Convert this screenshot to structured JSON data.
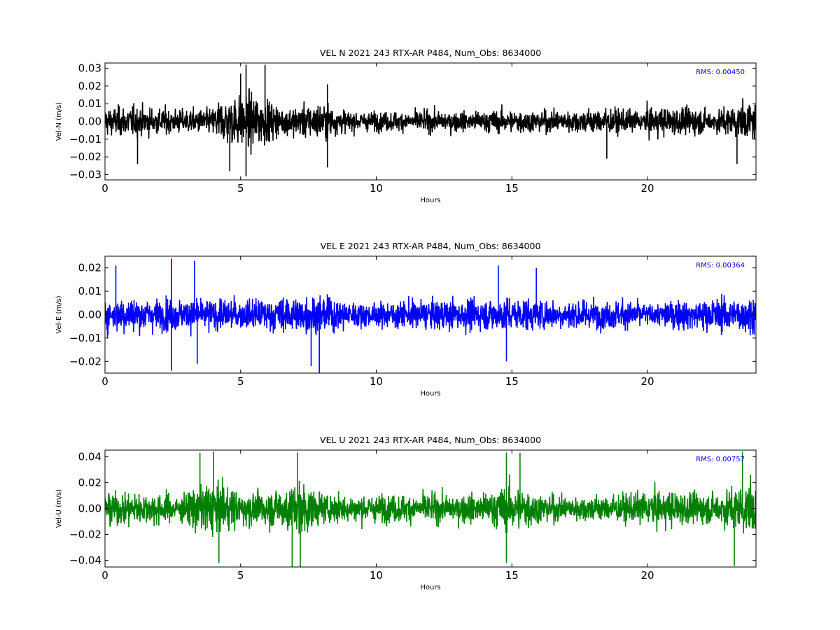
{
  "chart_data": [
    {
      "type": "line",
      "title": "VEL N 2021 243 RTX-AR  P484, Num_Obs: 8634000",
      "xlabel": "Hours",
      "ylabel": "Vel-N (m/s)",
      "xlim": [
        0,
        24
      ],
      "ylim": [
        -0.033,
        0.033
      ],
      "xticks": [
        0,
        5,
        10,
        15,
        20
      ],
      "xtick_labels": [
        "0",
        "5",
        "10",
        "15",
        "20"
      ],
      "yticks": [
        -0.03,
        -0.02,
        -0.01,
        0.0,
        0.01,
        0.02,
        0.03
      ],
      "ytick_labels": [
        "−0.03",
        "−0.02",
        "−0.01",
        "0.00",
        "0.01",
        "0.02",
        "0.03"
      ],
      "annotation": "RMS:  0.00450",
      "rms": 0.0045,
      "color": "#000000",
      "grid": false,
      "envelope": [
        [
          0,
          0.013
        ],
        [
          1,
          0.014
        ],
        [
          2,
          0.012
        ],
        [
          3,
          0.011
        ],
        [
          4,
          0.012
        ],
        [
          4.2,
          0.02
        ],
        [
          5,
          0.024
        ],
        [
          5.5,
          0.025
        ],
        [
          6,
          0.02
        ],
        [
          6.5,
          0.012
        ],
        [
          7,
          0.014
        ],
        [
          8,
          0.017
        ],
        [
          8.6,
          0.012
        ],
        [
          9,
          0.009
        ],
        [
          10,
          0.009
        ],
        [
          11,
          0.009
        ],
        [
          12,
          0.01
        ],
        [
          13,
          0.009
        ],
        [
          14,
          0.01
        ],
        [
          15,
          0.011
        ],
        [
          16,
          0.01
        ],
        [
          17,
          0.01
        ],
        [
          18,
          0.012
        ],
        [
          19,
          0.011
        ],
        [
          19.9,
          0.009
        ],
        [
          20,
          0.013
        ],
        [
          21,
          0.013
        ],
        [
          22,
          0.012
        ],
        [
          22.5,
          0.01
        ],
        [
          23,
          0.014
        ],
        [
          24,
          0.017
        ]
      ],
      "spikes": [
        [
          5.2,
          0.032
        ],
        [
          5.9,
          0.032
        ],
        [
          5.2,
          -0.031
        ],
        [
          4.6,
          -0.028
        ],
        [
          8.2,
          -0.026
        ],
        [
          1.2,
          -0.024
        ],
        [
          23.3,
          -0.024
        ],
        [
          8.2,
          0.021
        ],
        [
          18.5,
          -0.021
        ],
        [
          5,
          0.027
        ]
      ]
    },
    {
      "type": "line",
      "title": "VEL E 2021 243 RTX-AR  P484, Num_Obs: 8634000",
      "xlabel": "Hours",
      "ylabel": "Vel-E (m/s)",
      "xlim": [
        0,
        24
      ],
      "ylim": [
        -0.025,
        0.025
      ],
      "xticks": [
        0,
        5,
        10,
        15,
        20
      ],
      "xtick_labels": [
        "0",
        "5",
        "10",
        "15",
        "20"
      ],
      "yticks": [
        -0.02,
        -0.01,
        0.0,
        0.01,
        0.02
      ],
      "ytick_labels": [
        "−0.02",
        "−0.01",
        "0.00",
        "0.01",
        "0.02"
      ],
      "annotation": "RMS:  0.00364",
      "rms": 0.00364,
      "color": "#0000ff",
      "grid": false,
      "envelope": [
        [
          0,
          0.012
        ],
        [
          1,
          0.012
        ],
        [
          2,
          0.011
        ],
        [
          3,
          0.011
        ],
        [
          4,
          0.011
        ],
        [
          5,
          0.01
        ],
        [
          6,
          0.011
        ],
        [
          7,
          0.013
        ],
        [
          8,
          0.013
        ],
        [
          8.7,
          0.011
        ],
        [
          9.5,
          0.008
        ],
        [
          10,
          0.008
        ],
        [
          11,
          0.01
        ],
        [
          12,
          0.01
        ],
        [
          13,
          0.011
        ],
        [
          14,
          0.011
        ],
        [
          15,
          0.012
        ],
        [
          16,
          0.011
        ],
        [
          17,
          0.01
        ],
        [
          18,
          0.01
        ],
        [
          19,
          0.01
        ],
        [
          19.9,
          0.009
        ],
        [
          20,
          0.007
        ],
        [
          21,
          0.01
        ],
        [
          22,
          0.011
        ],
        [
          23,
          0.012
        ],
        [
          24,
          0.013
        ]
      ],
      "spikes": [
        [
          2.45,
          0.024
        ],
        [
          3.3,
          0.023
        ],
        [
          2.45,
          -0.024
        ],
        [
          7.9,
          -0.026
        ],
        [
          7.6,
          -0.022
        ],
        [
          14.5,
          0.021
        ],
        [
          15.9,
          0.02
        ],
        [
          0.4,
          0.021
        ],
        [
          3.4,
          -0.021
        ],
        [
          14.8,
          -0.02
        ]
      ]
    },
    {
      "type": "line",
      "title": "VEL U 2021 243 RTX-AR  P484, Num_Obs: 8634000",
      "xlabel": "Hours",
      "ylabel": "Vel-U (m/s)",
      "xlim": [
        0,
        24
      ],
      "ylim": [
        -0.045,
        0.045
      ],
      "xticks": [
        0,
        5,
        10,
        15,
        20
      ],
      "xtick_labels": [
        "0",
        "5",
        "10",
        "15",
        "20"
      ],
      "yticks": [
        -0.04,
        -0.02,
        0.0,
        0.02,
        0.04
      ],
      "ytick_labels": [
        "−0.04",
        "−0.02",
        "0.00",
        "0.02",
        "0.04"
      ],
      "annotation": "RMS:  0.00757",
      "rms": 0.00757,
      "color": "#008000",
      "grid": false,
      "envelope": [
        [
          0,
          0.02
        ],
        [
          1,
          0.02
        ],
        [
          2,
          0.02
        ],
        [
          2.8,
          0.015
        ],
        [
          3.5,
          0.033
        ],
        [
          4,
          0.034
        ],
        [
          4.5,
          0.028
        ],
        [
          5,
          0.02
        ],
        [
          6,
          0.022
        ],
        [
          6.5,
          0.026
        ],
        [
          7,
          0.034
        ],
        [
          7.5,
          0.03
        ],
        [
          8,
          0.018
        ],
        [
          9,
          0.017
        ],
        [
          10,
          0.017
        ],
        [
          11,
          0.017
        ],
        [
          12,
          0.018
        ],
        [
          13,
          0.017
        ],
        [
          14,
          0.02
        ],
        [
          15,
          0.03
        ],
        [
          15.5,
          0.026
        ],
        [
          16,
          0.019
        ],
        [
          17,
          0.015
        ],
        [
          18,
          0.017
        ],
        [
          19,
          0.017
        ],
        [
          20,
          0.021
        ],
        [
          21,
          0.023
        ],
        [
          22,
          0.018
        ],
        [
          23,
          0.024
        ],
        [
          23.5,
          0.032
        ],
        [
          24,
          0.03
        ]
      ],
      "spikes": [
        [
          4.0,
          0.044
        ],
        [
          3.5,
          0.043
        ],
        [
          7.1,
          0.043
        ],
        [
          14.8,
          0.043
        ],
        [
          15.3,
          0.043
        ],
        [
          23.5,
          0.044
        ],
        [
          6.9,
          -0.046
        ],
        [
          7.2,
          -0.045
        ],
        [
          4.2,
          -0.042
        ],
        [
          23.2,
          -0.044
        ],
        [
          14.8,
          -0.042
        ]
      ]
    }
  ]
}
